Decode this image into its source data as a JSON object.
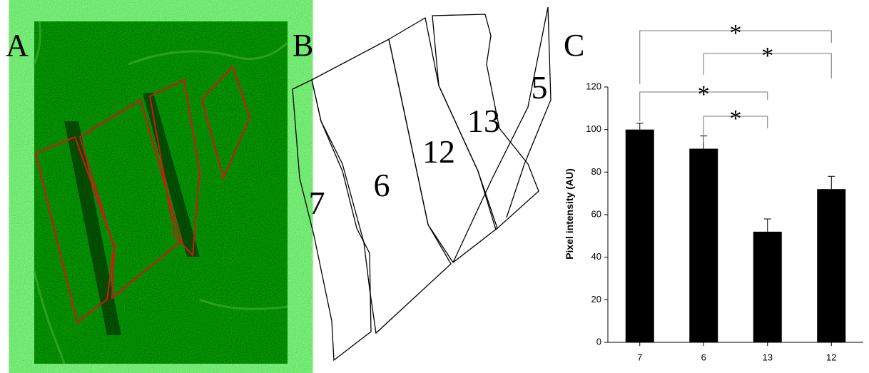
{
  "panel_labels": [
    "A",
    "B",
    "C"
  ],
  "panel_b": {
    "regions": [
      "7",
      "6",
      "12",
      "13",
      "5"
    ]
  },
  "chart_data": {
    "type": "bar",
    "categories": [
      "7",
      "6",
      "13",
      "12"
    ],
    "values": [
      100,
      91,
      52,
      72
    ],
    "errors": [
      3,
      6,
      6,
      6
    ],
    "color": "#000000",
    "ylabel": "Pixel intensity (AU)",
    "ylim": [
      0,
      120
    ],
    "yticks": [
      0,
      20,
      40,
      60,
      80,
      100,
      120
    ],
    "annotations": [
      "*",
      "*",
      "*",
      "*"
    ]
  }
}
